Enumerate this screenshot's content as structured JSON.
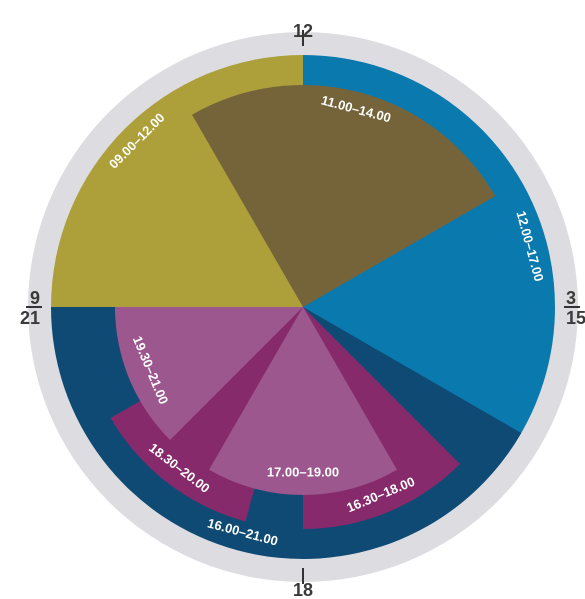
{
  "chart_data": {
    "type": "pie",
    "description": "",
    "clock_labels": [
      {
        "text": "12",
        "hour": 0
      },
      {
        "text": "3",
        "hour": 3
      },
      {
        "text": "15",
        "hour": 3
      },
      {
        "text": "18",
        "hour": 6
      },
      {
        "text": "9",
        "hour": 9
      },
      {
        "text": "21",
        "hour": 9
      }
    ],
    "segments": [
      {
        "label": "09.00–12.00",
        "start": 9.0,
        "end": 12.0,
        "ring": "outer",
        "color": "#ADA03A"
      },
      {
        "label": "12.00–17.00",
        "start": 12.0,
        "end": 17.0,
        "ring": "outer",
        "color": "#0A79AE"
      },
      {
        "label": "16.00–21.00",
        "start": 16.0,
        "end": 21.0,
        "ring": "outer",
        "color": "#0F4A75"
      },
      {
        "label": "11.00–14.00",
        "start": 11.0,
        "end": 14.0,
        "ring": "inner",
        "color": "#75643A"
      },
      {
        "label": "16.30–18.00",
        "start": 16.5,
        "end": 18.0,
        "ring": "inner",
        "color": "#872A6C"
      },
      {
        "label": "18.30–20.00",
        "start": 18.5,
        "end": 20.0,
        "ring": "inner",
        "color": "#872A6C"
      },
      {
        "label": "17.00–19.00",
        "start": 17.0,
        "end": 19.0,
        "ring": "innermost",
        "color": "#9C578E"
      },
      {
        "label": "19.30–21.00",
        "start": 19.5,
        "end": 21.0,
        "ring": "innermost",
        "color": "#9C578E"
      }
    ],
    "colors": {
      "clock_face": "#DDDCE0",
      "tick": "#333333",
      "label_text": "#FFFFFF",
      "hour_text": "#3A3A3A"
    }
  }
}
